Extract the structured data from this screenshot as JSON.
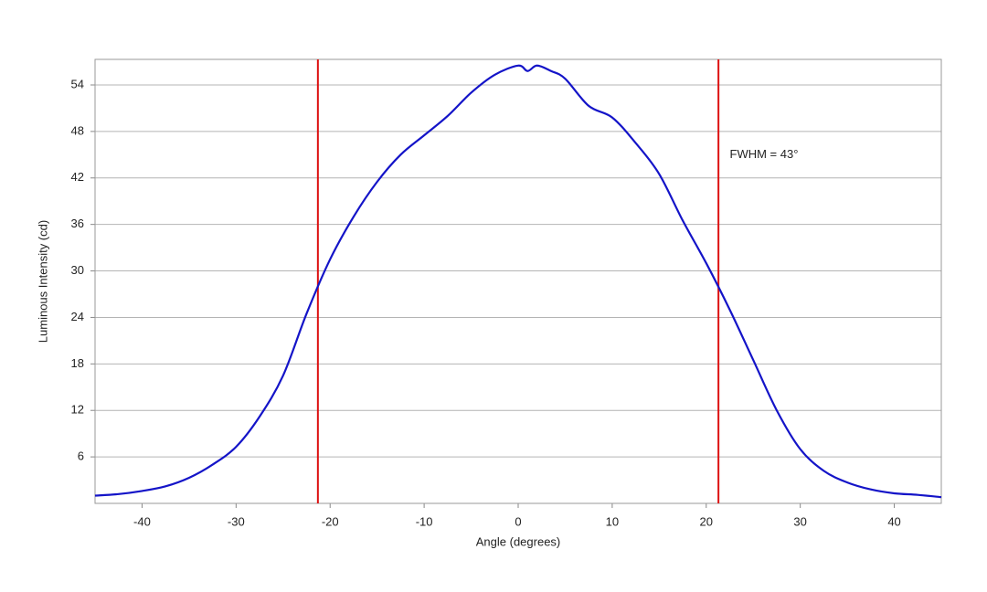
{
  "chart_data": {
    "type": "line",
    "x_label": "Angle (degrees)",
    "y_label": "Luminous Intensity (cd)",
    "xlim": [
      -45,
      45
    ],
    "ylim": [
      0,
      57.3
    ],
    "xticks": [
      -40,
      -30,
      -20,
      -10,
      0,
      10,
      20,
      30,
      40
    ],
    "yticks": [
      6,
      12,
      18,
      24,
      30,
      36,
      42,
      48,
      54
    ],
    "grid": true,
    "x": [
      -45,
      -42.5,
      -40,
      -37.5,
      -35,
      -32.5,
      -30,
      -27.5,
      -25,
      -22.5,
      -20,
      -17.5,
      -15,
      -12.5,
      -10,
      -7.5,
      -5,
      -2.5,
      0,
      1,
      2,
      3.5,
      5,
      7.5,
      10,
      12.5,
      15,
      17.5,
      20,
      22.5,
      25,
      27.5,
      30,
      32.5,
      35,
      37.5,
      40,
      42.5,
      45
    ],
    "series": [
      {
        "name": "Luminous Intensity",
        "color": "#1414c8",
        "values": [
          1.0,
          1.2,
          1.6,
          2.2,
          3.3,
          5.0,
          7.3,
          11.2,
          16.5,
          24.5,
          31.5,
          37.0,
          41.5,
          45.0,
          47.5,
          50.0,
          53.0,
          55.3,
          56.5,
          55.8,
          56.5,
          55.8,
          54.8,
          51.3,
          49.8,
          46.5,
          42.5,
          36.5,
          31.0,
          25.0,
          18.5,
          12.0,
          7.0,
          4.2,
          2.7,
          1.8,
          1.3,
          1.1,
          0.8
        ]
      }
    ],
    "vlines": {
      "color": "#dd1111",
      "values": [
        -21.3,
        21.3
      ]
    },
    "annotation": {
      "text": "FWHM = 43°",
      "x": 22.5,
      "y": 45
    }
  }
}
